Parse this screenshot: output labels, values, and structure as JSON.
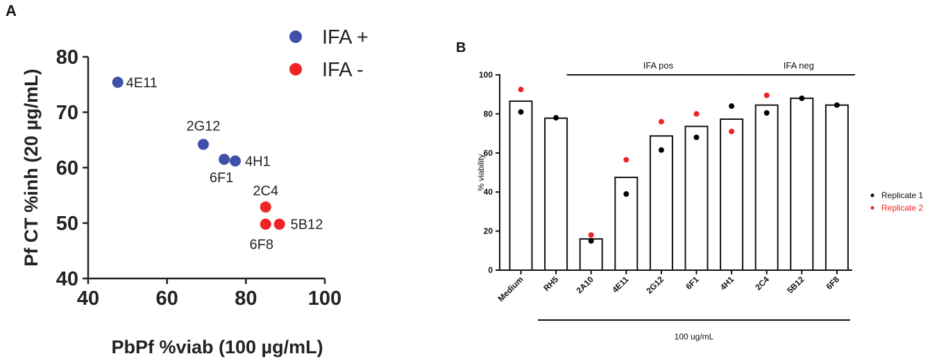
{
  "panel_a_label": "A",
  "panel_b_label": "B",
  "chart_data": [
    {
      "type": "scatter",
      "panel": "A",
      "xlabel": "PbPf %viab (100 µg/mL)",
      "ylabel": "Pf CT  %inh (20 µg/mL)",
      "xlim": [
        40,
        100
      ],
      "ylim": [
        40,
        80
      ],
      "xticks": [
        "40",
        "60",
        "80",
        "100"
      ],
      "yticks": [
        "40",
        "50",
        "60",
        "70",
        "80"
      ],
      "legend_position": "top-right",
      "series": [
        {
          "name": "IFA +",
          "color": "#3f51a8",
          "points": [
            {
              "label": "4E11",
              "x": 47.5,
              "y": 75.4
            },
            {
              "label": "2G12",
              "x": 69.2,
              "y": 64.2
            },
            {
              "label": "6F1",
              "x": 74.5,
              "y": 61.5
            },
            {
              "label": "4H1",
              "x": 77.3,
              "y": 61.2
            }
          ]
        },
        {
          "name": "IFA -",
          "color": "#ee2424",
          "points": [
            {
              "label": "2C4",
              "x": 85.0,
              "y": 52.9
            },
            {
              "label": "6F8",
              "x": 85.0,
              "y": 49.8
            },
            {
              "label": "5B12",
              "x": 88.5,
              "y": 49.8
            }
          ]
        }
      ]
    },
    {
      "type": "bar",
      "panel": "B",
      "ylabel": "% viability",
      "ylim": [
        0,
        100
      ],
      "yticks": [
        "0",
        "20",
        "40",
        "60",
        "80",
        "100"
      ],
      "categories": [
        "Medium",
        "RH5",
        "2A10",
        "4E11",
        "2G12",
        "6F1",
        "4H1",
        "2C4",
        "5B12",
        "6F8"
      ],
      "values": [
        86.5,
        77.8,
        16,
        47.5,
        68.7,
        73.6,
        77.3,
        84.5,
        88,
        84.5
      ],
      "replicates": [
        {
          "name": "Replicate 1",
          "color": "#000000",
          "values": [
            81,
            78,
            15,
            39,
            61.5,
            68,
            84,
            80.5,
            88,
            84.5
          ]
        },
        {
          "name": "Replicate 2",
          "color": "#ee2424",
          "values": [
            92.5,
            null,
            18,
            56.5,
            76,
            80,
            71,
            89.5,
            null,
            null
          ]
        }
      ],
      "groups": [
        {
          "label": "IFA pos",
          "from": "2A10",
          "to": "4H1"
        },
        {
          "label": "IFA neg",
          "from": "2C4",
          "to": "6F8"
        }
      ],
      "concentration_label": "100 ug/mL",
      "legend_position": "right"
    }
  ]
}
